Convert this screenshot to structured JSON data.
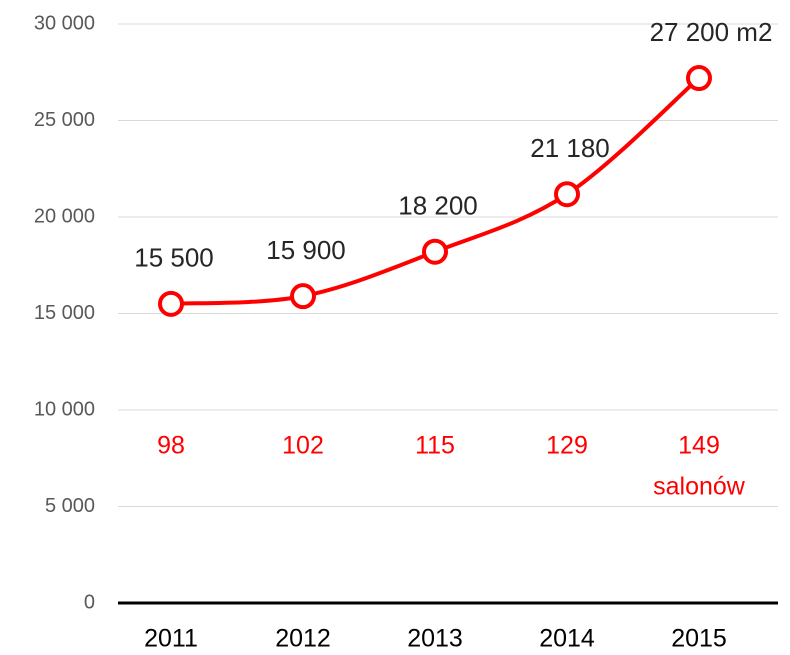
{
  "chart_data": {
    "type": "line",
    "categories": [
      "2011",
      "2012",
      "2013",
      "2014",
      "2015"
    ],
    "series": [
      {
        "color": "#ff0000",
        "values": [
          15500,
          15900,
          18200,
          21180,
          27200
        ],
        "value_labels": [
          "15 500",
          "15 900",
          "18 200",
          "21 180",
          "27 200 m2"
        ]
      }
    ],
    "store_counts": {
      "values": [
        98,
        102,
        115,
        129,
        149
      ],
      "unit": "salonów",
      "color": "#ff0000"
    },
    "ylim": [
      0,
      30000
    ],
    "yticks": [
      0,
      {
        "value": 5000,
        "label": "5 000"
      },
      {
        "value": 10000,
        "label": "10 000"
      },
      {
        "value": 15000,
        "label": "15 000"
      },
      {
        "value": 20000,
        "label": "20 000"
      },
      {
        "value": 25000,
        "label": "25 000"
      },
      {
        "value": 30000,
        "label": "30 000"
      }
    ],
    "grid": true
  }
}
